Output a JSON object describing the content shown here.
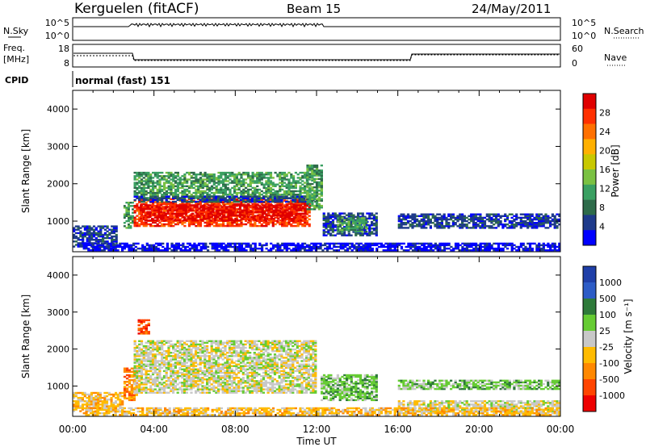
{
  "header": {
    "station": "Kerguelen (fitACF)",
    "beam": "Beam 15",
    "date": "24/May/2011"
  },
  "noise_panel": {
    "left_label": "N.Sky",
    "right_label": "N.Search",
    "left_ticks": [
      "10^5",
      "10^0"
    ],
    "right_ticks": [
      "10^5",
      "10^0"
    ]
  },
  "freq_panel": {
    "left_label_1": "Freq.",
    "left_label_2": "[MHz]",
    "left_ticks": [
      "18",
      "8"
    ],
    "right_label": "Nave",
    "right_ticks": [
      "60",
      "0"
    ]
  },
  "cpid": {
    "label": "CPID",
    "value": "normal (fast) 151"
  },
  "colors": {
    "power": [
      "#0000ff",
      "#1e3a8a",
      "#2e6b4a",
      "#3aa062",
      "#7ac142",
      "#c8c800",
      "#ffb000",
      "#ff7000",
      "#ff3000",
      "#e00000"
    ],
    "velocity": [
      "#1f3fa8",
      "#2d5cc6",
      "#2e7a3a",
      "#66cc33",
      "#c8c8c8",
      "#ffbb00",
      "#ff8800",
      "#ff4400",
      "#ee0000"
    ],
    "panel_border": "#000000"
  },
  "chart_data": [
    {
      "type": "heatmap",
      "title": "Power",
      "ylabel": "Slant Range [km]",
      "xlabel": "Time UT",
      "xlim": [
        "00:00",
        "24:00"
      ],
      "ylim": [
        180,
        4500
      ],
      "x_ticks": [
        "00:00",
        "04:00",
        "08:00",
        "12:00",
        "16:00",
        "20:00",
        "00:00"
      ],
      "y_ticks": [
        1000,
        2000,
        3000,
        4000
      ],
      "colorbar": {
        "label": "Power [dB]",
        "ticks": [
          4,
          8,
          12,
          16,
          20,
          24,
          28
        ]
      },
      "regions": [
        {
          "t0": 0.0,
          "t1": 2.2,
          "r0": 300,
          "r1": 850,
          "level": 1
        },
        {
          "t0": 2.5,
          "t1": 3.0,
          "r0": 800,
          "r1": 1500,
          "level": 3
        },
        {
          "t0": 3.0,
          "t1": 11.7,
          "r0": 850,
          "r1": 1600,
          "level": 8
        },
        {
          "t0": 3.3,
          "t1": 11.5,
          "r0": 1000,
          "r1": 1450,
          "level": 9
        },
        {
          "t0": 3.0,
          "t1": 11.7,
          "r0": 1600,
          "r1": 2300,
          "level": 3
        },
        {
          "t0": 3.0,
          "t1": 12.0,
          "r0": 1500,
          "r1": 1650,
          "level": 1
        },
        {
          "t0": 11.5,
          "t1": 12.3,
          "r0": 1300,
          "r1": 2500,
          "level": 3
        },
        {
          "t0": 12.3,
          "t1": 15.0,
          "r0": 600,
          "r1": 1200,
          "level": 1
        },
        {
          "t0": 13.0,
          "t1": 14.5,
          "r0": 700,
          "r1": 1100,
          "level": 3
        },
        {
          "t0": 16.0,
          "t1": 24.0,
          "r0": 800,
          "r1": 1200,
          "level": 1
        },
        {
          "t0": 0.5,
          "t1": 24.0,
          "r0": 200,
          "r1": 400,
          "level": 0
        }
      ]
    },
    {
      "type": "heatmap",
      "title": "Velocity",
      "ylabel": "Slant Range [km]",
      "xlabel": "Time UT",
      "xlim": [
        "00:00",
        "24:00"
      ],
      "ylim": [
        180,
        4500
      ],
      "x_ticks": [
        "00:00",
        "04:00",
        "08:00",
        "12:00",
        "16:00",
        "20:00",
        "00:00"
      ],
      "y_ticks": [
        1000,
        2000,
        3000,
        4000
      ],
      "colorbar": {
        "label": "Velocity [m s⁻¹]",
        "ticks": [
          1000,
          500,
          100,
          25,
          -25,
          -100,
          -500,
          -1000
        ]
      },
      "regions": [
        {
          "t0": 0.0,
          "t1": 2.5,
          "r0": 300,
          "r1": 800,
          "level": 5
        },
        {
          "t0": 2.5,
          "t1": 3.2,
          "r0": 600,
          "r1": 1500,
          "level": 6
        },
        {
          "t0": 3.0,
          "t1": 12.0,
          "r0": 800,
          "r1": 2200,
          "level": 4
        },
        {
          "t0": 3.2,
          "t1": 3.8,
          "r0": 2400,
          "r1": 2800,
          "level": 7
        },
        {
          "t0": 12.2,
          "t1": 15.0,
          "r0": 600,
          "r1": 1300,
          "level": 3
        },
        {
          "t0": 16.0,
          "t1": 24.0,
          "r0": 900,
          "r1": 1150,
          "level": 3
        },
        {
          "t0": 16.0,
          "t1": 24.0,
          "r0": 300,
          "r1": 600,
          "level": 4
        },
        {
          "t0": 0.5,
          "t1": 24.0,
          "r0": 200,
          "r1": 400,
          "level": 5
        }
      ]
    }
  ],
  "footer": {
    "xlabel": "Time UT"
  }
}
